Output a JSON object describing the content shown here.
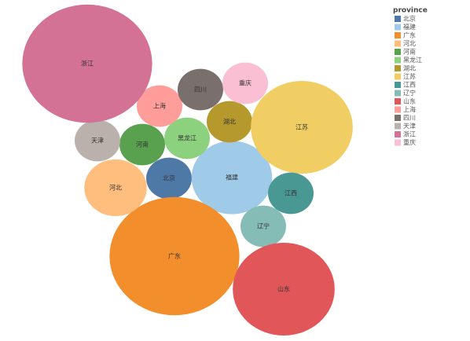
{
  "chart_data": {
    "type": "bubble",
    "legend_title": "province",
    "legend_position": "right",
    "categories": [
      "北京",
      "福建",
      "广东",
      "河北",
      "河南",
      "黑龙江",
      "湖北",
      "江苏",
      "江西",
      "辽宁",
      "山东",
      "上海",
      "四川",
      "天津",
      "浙江",
      "重庆"
    ],
    "values": [
      8,
      25,
      65,
      15,
      8,
      8,
      8,
      40,
      8,
      8,
      40,
      8,
      8,
      8,
      65,
      8
    ],
    "colors": [
      "#4e79a7",
      "#a0cbe8",
      "#f28e2b",
      "#ffbe7d",
      "#59a14f",
      "#8cd17d",
      "#b6992d",
      "#f1ce63",
      "#499894",
      "#86bcb6",
      "#e15759",
      "#ff9d9a",
      "#79706e",
      "#bab0ac",
      "#d37295",
      "#fabfd2"
    ]
  }
}
